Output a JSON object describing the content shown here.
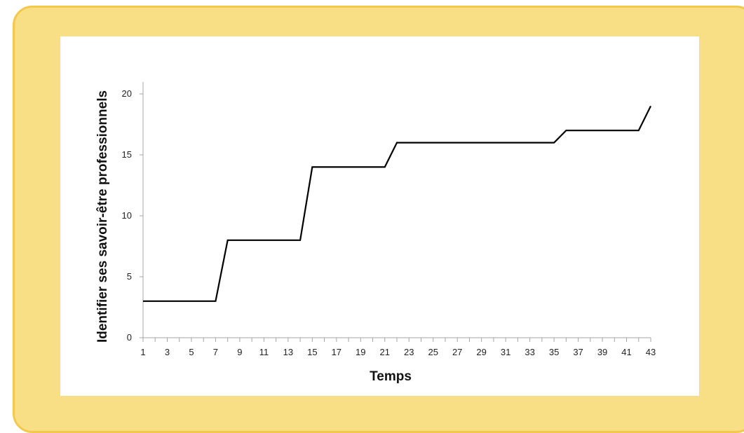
{
  "chart_data": {
    "type": "line",
    "xlabel": "Temps",
    "ylabel": "Identifier ses savoir-être professionnels",
    "xlim": [
      1,
      43
    ],
    "ylim": [
      0,
      20
    ],
    "xticks": [
      1,
      3,
      5,
      7,
      9,
      11,
      13,
      15,
      17,
      19,
      21,
      23,
      25,
      27,
      29,
      31,
      33,
      35,
      37,
      39,
      41,
      43
    ],
    "yticks": [
      0,
      5,
      10,
      15,
      20
    ],
    "grid": false,
    "legend": "none",
    "line_color": "#000000",
    "series": [
      {
        "x": [
          1,
          7,
          8,
          14,
          15,
          21,
          22,
          35,
          36,
          42,
          43
        ],
        "y": [
          3,
          3,
          8,
          8,
          14,
          14,
          16,
          16,
          17,
          17,
          19
        ]
      }
    ]
  },
  "colors": {
    "frame_fill": "#f8df86",
    "frame_border": "#f2c94c",
    "plot_background": "#ffffff",
    "axis": "#a6a6a6"
  }
}
